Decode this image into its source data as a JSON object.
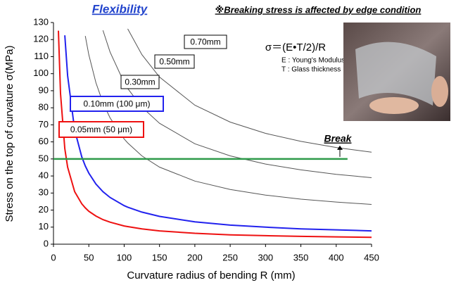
{
  "chart_data": {
    "type": "line",
    "title": "Flexibility",
    "note": "※Breaking stress is affected by edge condition",
    "formula": "σ＝(E•T/2)/R",
    "formula_legend": [
      "E : Young's Modulus",
      "T : Glass thickness"
    ],
    "x_label": "Curvature radius of bending R (mm)",
    "y_label": "Stress on the top of curvature σ(MPa)",
    "x": [
      7,
      10,
      16,
      20,
      30,
      40,
      45,
      50,
      60,
      70,
      80,
      100,
      105,
      125,
      150,
      200,
      250,
      300,
      350,
      400,
      450
    ],
    "series": [
      {
        "name": "0.05mm (50 μm)",
        "color": "#ee1111",
        "values": [
          125.2,
          88.3,
          56.0,
          45.2,
          30.8,
          23.7,
          21.3,
          19.3,
          16.5,
          14.4,
          12.9,
          10.7,
          10.3,
          9.0,
          7.8,
          6.4,
          5.5,
          5.0,
          4.6,
          4.3,
          4.0
        ]
      },
      {
        "name": "0.10mm (100 μm)",
        "color": "#2222ee",
        "values": [
          null,
          null,
          122.5,
          98.8,
          67.0,
          51.2,
          45.9,
          41.7,
          35.3,
          30.8,
          27.4,
          22.6,
          21.7,
          18.8,
          16.3,
          13.1,
          11.2,
          10.0,
          9.0,
          8.4,
          7.8
        ]
      },
      {
        "name": "0.30mm",
        "color": "#555555",
        "values": [
          null,
          null,
          null,
          null,
          null,
          null,
          122.1,
          111.1,
          94.7,
          82.9,
          74.1,
          61.7,
          59.4,
          51.8,
          45.2,
          37.0,
          32.1,
          28.8,
          26.4,
          24.7,
          23.3
        ]
      },
      {
        "name": "0.50mm",
        "color": "#555555",
        "values": [
          null,
          null,
          null,
          null,
          null,
          null,
          null,
          null,
          null,
          125.4,
          112.7,
          94.7,
          91.3,
          80.4,
          70.9,
          58.9,
          51.8,
          47.0,
          43.6,
          41.0,
          39.0
        ]
      },
      {
        "name": "0.70mm",
        "color": "#555555",
        "values": [
          null,
          null,
          null,
          null,
          null,
          null,
          null,
          null,
          null,
          null,
          null,
          null,
          126.3,
          111.2,
          98.0,
          81.5,
          71.6,
          65.0,
          60.3,
          56.7,
          54.0
        ]
      }
    ],
    "threshold": {
      "label": "Break",
      "value": 50,
      "x_range": [
        0,
        416
      ],
      "color": "#2e9a4a"
    },
    "xlim": [
      0,
      450
    ],
    "xticks": [
      0,
      50,
      100,
      150,
      200,
      250,
      300,
      350,
      400,
      450
    ],
    "ylim": [
      0,
      130
    ],
    "yticks": [
      0,
      10,
      20,
      30,
      40,
      50,
      60,
      70,
      80,
      90,
      100,
      110,
      120,
      130
    ],
    "grid": false
  }
}
